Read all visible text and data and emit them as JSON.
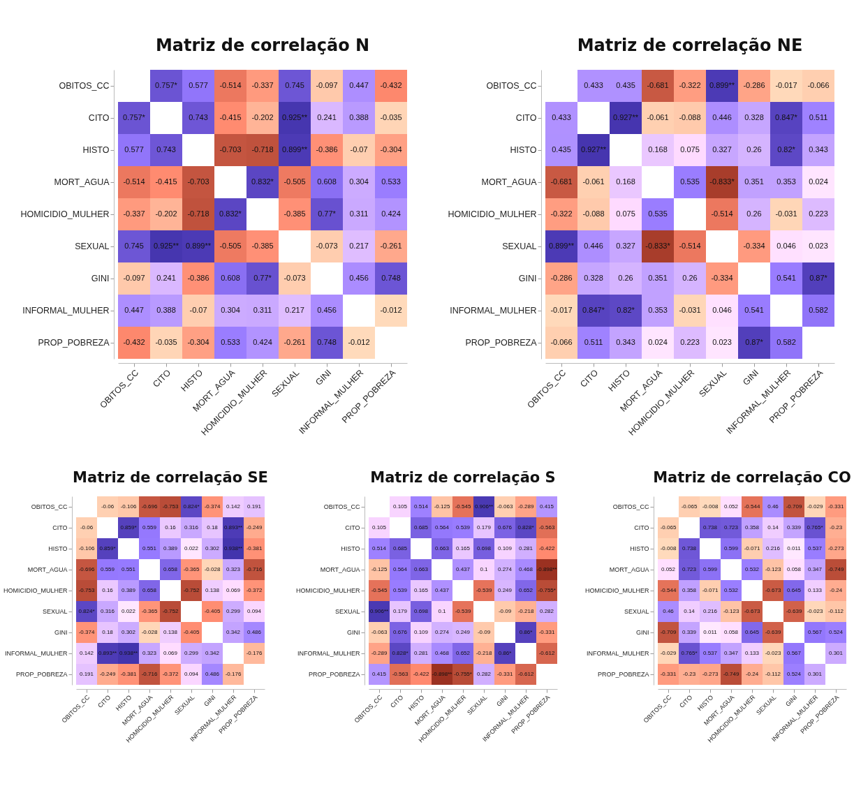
{
  "chart_data": [
    {
      "type": "heatmap",
      "data_labels": true,
      "title": "Matriz de correlação N",
      "categories": [
        "OBITOS_CC",
        "CITO",
        "HISTO",
        "MORT_AGUA",
        "HOMICIDIO_MULHER",
        "SEXUAL",
        "GINI",
        "INFORMAL_MULHER",
        "PROP_POBREZA"
      ],
      "y_categories": [
        "OBITOS_CC",
        "CITO",
        "HISTO",
        "MORT_AGUA",
        "HOMICIDIO_MULHER",
        "SEXUAL",
        "GINI",
        "INFORMAL_MULHER",
        "PROP_POBREZA"
      ],
      "cells": [
        [
          null,
          0.757,
          0.577,
          -0.514,
          -0.337,
          0.745,
          -0.097,
          0.447,
          -0.432
        ],
        [
          0.757,
          null,
          0.743,
          -0.415,
          -0.202,
          0.925,
          0.241,
          0.388,
          -0.035
        ],
        [
          0.577,
          0.743,
          null,
          -0.703,
          -0.718,
          0.899,
          -0.386,
          -0.07,
          -0.304
        ],
        [
          -0.514,
          -0.415,
          -0.703,
          null,
          0.832,
          -0.505,
          0.608,
          0.304,
          0.533
        ],
        [
          -0.337,
          -0.202,
          -0.718,
          0.832,
          null,
          -0.385,
          0.77,
          0.311,
          0.424
        ],
        [
          0.745,
          0.925,
          0.899,
          -0.505,
          -0.385,
          null,
          -0.073,
          0.217,
          -0.261
        ],
        [
          -0.097,
          0.241,
          -0.386,
          0.608,
          0.77,
          -0.073,
          null,
          0.456,
          0.748
        ],
        [
          0.447,
          0.388,
          -0.07,
          0.304,
          0.311,
          0.217,
          0.456,
          null,
          -0.012
        ],
        [
          -0.432,
          -0.035,
          -0.304,
          0.533,
          0.424,
          -0.261,
          0.748,
          -0.012,
          null
        ]
      ],
      "cell_labels": [
        [
          null,
          "0.757*",
          "0.577",
          "-0.514",
          "-0.337",
          "0.745",
          "-0.097",
          "0.447",
          "-0.432"
        ],
        [
          "0.757*",
          null,
          "0.743",
          "-0.415",
          "-0.202",
          "0.925**",
          "0.241",
          "0.388",
          "-0.035"
        ],
        [
          "0.577",
          "0.743",
          null,
          "-0.703",
          "-0.718",
          "0.899**",
          "-0.386",
          "-0.07",
          "-0.304"
        ],
        [
          "-0.514",
          "-0.415",
          "-0.703",
          null,
          "0.832*",
          "-0.505",
          "0.608",
          "0.304",
          "0.533"
        ],
        [
          "-0.337",
          "-0.202",
          "-0.718",
          "0.832*",
          null,
          "-0.385",
          "0.77*",
          "0.311",
          "0.424"
        ],
        [
          "0.745",
          "0.925**",
          "0.899**",
          "-0.505",
          "-0.385",
          null,
          "-0.073",
          "0.217",
          "-0.261"
        ],
        [
          "-0.097",
          "0.241",
          "-0.386",
          "0.608",
          "0.77*",
          "-0.073",
          null,
          "0.456",
          "0.748"
        ],
        [
          "0.447",
          "0.388",
          "-0.07",
          "0.304",
          "0.311",
          "0.217",
          "0.456",
          null,
          "-0.012"
        ],
        [
          "-0.432",
          "-0.035",
          "-0.304",
          "0.533",
          "0.424",
          "-0.261",
          "0.748",
          "-0.012",
          null
        ]
      ]
    },
    {
      "type": "heatmap",
      "data_labels": true,
      "title": "Matriz de correlação NE",
      "categories": [
        "OBITOS_CC",
        "CITO",
        "HISTO",
        "MORT_AGUA",
        "HOMICIDIO_MULHER",
        "SEXUAL",
        "GINI",
        "INFORMAL_MULHER",
        "PROP_POBREZA"
      ],
      "y_categories": [
        "OBITOS_CC",
        "CITO",
        "HISTO",
        "MORT_AGUA",
        "HOMICIDIO_MULHER",
        "SEXUAL",
        "GINI",
        "INFORMAL_MULHER",
        "PROP_POBREZA"
      ],
      "cells": [
        [
          null,
          0.433,
          0.435,
          -0.681,
          -0.322,
          0.899,
          -0.286,
          -0.017,
          -0.066
        ],
        [
          0.433,
          null,
          0.927,
          -0.061,
          -0.088,
          0.446,
          0.328,
          0.847,
          0.511
        ],
        [
          0.435,
          0.927,
          null,
          0.168,
          0.075,
          0.327,
          0.26,
          0.82,
          0.343
        ],
        [
          -0.681,
          -0.061,
          0.168,
          null,
          0.535,
          -0.833,
          0.351,
          0.353,
          0.024
        ],
        [
          -0.322,
          -0.088,
          0.075,
          0.535,
          null,
          -0.514,
          0.26,
          -0.031,
          0.223
        ],
        [
          0.899,
          0.446,
          0.327,
          -0.833,
          -0.514,
          null,
          -0.334,
          0.046,
          0.023
        ],
        [
          -0.286,
          0.328,
          0.26,
          0.351,
          0.26,
          -0.334,
          null,
          0.541,
          0.87
        ],
        [
          -0.017,
          0.847,
          0.82,
          0.353,
          -0.031,
          0.046,
          0.541,
          null,
          0.582
        ],
        [
          -0.066,
          0.511,
          0.343,
          0.024,
          0.223,
          0.023,
          0.87,
          0.582,
          null
        ]
      ],
      "cell_labels": [
        [
          null,
          "0.433",
          "0.435",
          "-0.681",
          "-0.322",
          "0.899**",
          "-0.286",
          "-0.017",
          "-0.066"
        ],
        [
          "0.433",
          null,
          "0.927**",
          "-0.061",
          "-0.088",
          "0.446",
          "0.328",
          "0.847*",
          "0.511"
        ],
        [
          "0.435",
          "0.927**",
          null,
          "0.168",
          "0.075",
          "0.327",
          "0.26",
          "0.82*",
          "0.343"
        ],
        [
          "-0.681",
          "-0.061",
          "0.168",
          null,
          "0.535",
          "-0.833*",
          "0.351",
          "0.353",
          "0.024"
        ],
        [
          "-0.322",
          "-0.088",
          "0.075",
          "0.535",
          null,
          "-0.514",
          "0.26",
          "-0.031",
          "0.223"
        ],
        [
          "0.899**",
          "0.446",
          "0.327",
          "-0.833*",
          "-0.514",
          null,
          "-0.334",
          "0.046",
          "0.023"
        ],
        [
          "-0.286",
          "0.328",
          "0.26",
          "0.351",
          "0.26",
          "-0.334",
          null,
          "0.541",
          "0.87*"
        ],
        [
          "-0.017",
          "0.847*",
          "0.82*",
          "0.353",
          "-0.031",
          "0.046",
          "0.541",
          null,
          "0.582"
        ],
        [
          "-0.066",
          "0.511",
          "0.343",
          "0.024",
          "0.223",
          "0.023",
          "0.87*",
          "0.582",
          null
        ]
      ]
    },
    {
      "type": "heatmap",
      "data_labels": true,
      "title": "Matriz de correlação SE",
      "categories": [
        "OBITOS_CC",
        "CITO",
        "HISTO",
        "MORT_AGUA",
        "HOMICIDIO_MULHER",
        "SEXUAL",
        "GINI",
        "INFORMAL_MULHER",
        "PROP_POBREZA"
      ],
      "y_categories": [
        "OBITOS_CC",
        "CITO",
        "HISTO",
        "MORT_AGUA",
        "HOMICIDIO_MULHER",
        "SEXUAL",
        "GINI",
        "INFORMAL_MULHER",
        "PROP_POBREZA"
      ],
      "cells": [
        [
          null,
          -0.06,
          -0.106,
          -0.696,
          -0.753,
          0.824,
          -0.374,
          0.142,
          0.191
        ],
        [
          -0.06,
          null,
          0.859,
          0.559,
          0.16,
          0.316,
          0.18,
          0.893,
          -0.249
        ],
        [
          -0.106,
          0.859,
          null,
          0.551,
          0.389,
          0.022,
          0.302,
          0.938,
          -0.381
        ],
        [
          -0.696,
          0.559,
          0.551,
          null,
          0.658,
          -0.365,
          -0.028,
          0.323,
          -0.716
        ],
        [
          -0.753,
          0.16,
          0.389,
          0.658,
          null,
          -0.752,
          0.138,
          0.069,
          -0.372
        ],
        [
          0.824,
          0.316,
          0.022,
          -0.365,
          -0.752,
          null,
          -0.405,
          0.299,
          0.094
        ],
        [
          -0.374,
          0.18,
          0.302,
          -0.028,
          0.138,
          -0.405,
          null,
          0.342,
          0.486
        ],
        [
          0.142,
          0.893,
          0.938,
          0.323,
          0.069,
          0.299,
          0.342,
          null,
          -0.176
        ],
        [
          0.191,
          -0.249,
          -0.381,
          -0.716,
          -0.372,
          0.094,
          0.486,
          -0.176,
          null
        ]
      ],
      "cell_labels": [
        [
          null,
          "-0.06",
          "-0.106",
          "-0.696",
          "-0.753",
          "0.824*",
          "-0.374",
          "0.142",
          "0.191"
        ],
        [
          "-0.06",
          null,
          "0.859*",
          "0.559",
          "0.16",
          "0.316",
          "0.18",
          "0.893**",
          "-0.249"
        ],
        [
          "-0.106",
          "0.859*",
          null,
          "0.551",
          "0.389",
          "0.022",
          "0.302",
          "0.938**",
          "-0.381"
        ],
        [
          "-0.696",
          "0.559",
          "0.551",
          null,
          "0.658",
          "-0.365",
          "-0.028",
          "0.323",
          "-0.716"
        ],
        [
          "-0.753",
          "0.16",
          "0.389",
          "0.658",
          null,
          "-0.752",
          "0.138",
          "0.069",
          "-0.372"
        ],
        [
          "0.824*",
          "0.316",
          "0.022",
          "-0.365",
          "-0.752",
          null,
          "-0.405",
          "0.299",
          "0.094"
        ],
        [
          "-0.374",
          "0.18",
          "0.302",
          "-0.028",
          "0.138",
          "-0.405",
          null,
          "0.342",
          "0.486"
        ],
        [
          "0.142",
          "0.893**",
          "0.938**",
          "0.323",
          "0.069",
          "0.299",
          "0.342",
          null,
          "-0.176"
        ],
        [
          "0.191",
          "-0.249",
          "-0.381",
          "-0.716",
          "-0.372",
          "0.094",
          "0.486",
          "-0.176",
          null
        ]
      ]
    },
    {
      "type": "heatmap",
      "data_labels": true,
      "title": "Matriz de correlação S",
      "categories": [
        "OBITOS_CC",
        "CITO",
        "HISTO",
        "MORT_AGUA",
        "HOMICIDIO_MULHER",
        "SEXUAL",
        "GINI",
        "INFORMAL_MULHER",
        "PROP_POBREZA"
      ],
      "y_categories": [
        "OBITOS_CC",
        "CITO",
        "HISTO",
        "MORT_AGUA",
        "HOMICIDIO_MULHER",
        "SEXUAL",
        "GINI",
        "INFORMAL_MULHER",
        "PROP_POBREZA"
      ],
      "cells": [
        [
          null,
          0.105,
          0.514,
          -0.125,
          -0.545,
          0.906,
          -0.063,
          -0.289,
          0.415
        ],
        [
          0.105,
          null,
          0.685,
          0.564,
          0.539,
          0.179,
          0.676,
          0.828,
          -0.563
        ],
        [
          0.514,
          0.685,
          null,
          0.663,
          0.165,
          0.698,
          0.109,
          0.281,
          -0.422
        ],
        [
          -0.125,
          0.564,
          0.663,
          null,
          0.437,
          0.1,
          0.274,
          0.468,
          -0.898
        ],
        [
          -0.545,
          0.539,
          0.165,
          0.437,
          null,
          -0.539,
          0.249,
          0.652,
          -0.755
        ],
        [
          0.906,
          0.179,
          0.698,
          0.1,
          -0.539,
          null,
          -0.09,
          -0.218,
          0.282
        ],
        [
          -0.063,
          0.676,
          0.109,
          0.274,
          0.249,
          -0.09,
          null,
          0.86,
          -0.331
        ],
        [
          -0.289,
          0.828,
          0.281,
          0.468,
          0.652,
          -0.218,
          0.86,
          null,
          -0.612
        ],
        [
          0.415,
          -0.563,
          -0.422,
          -0.898,
          -0.755,
          0.282,
          -0.331,
          -0.612,
          null
        ]
      ],
      "cell_labels": [
        [
          null,
          "0.105",
          "0.514",
          "-0.125",
          "-0.545",
          "0.906**",
          "-0.063",
          "-0.289",
          "0.415"
        ],
        [
          "0.105",
          null,
          "0.685",
          "0.564",
          "0.539",
          "0.179",
          "0.676",
          "0.828*",
          "-0.563"
        ],
        [
          "0.514",
          "0.685",
          null,
          "0.663",
          "0.165",
          "0.698",
          "0.109",
          "0.281",
          "-0.422"
        ],
        [
          "-0.125",
          "0.564",
          "0.663",
          null,
          "0.437",
          "0.1",
          "0.274",
          "0.468",
          "-0.898**"
        ],
        [
          "-0.545",
          "0.539",
          "0.165",
          "0.437",
          null,
          "-0.539",
          "0.249",
          "0.652",
          "-0.755*"
        ],
        [
          "0.906**",
          "0.179",
          "0.698",
          "0.1",
          "-0.539",
          null,
          "-0.09",
          "-0.218",
          "0.282"
        ],
        [
          "-0.063",
          "0.676",
          "0.109",
          "0.274",
          "0.249",
          "-0.09",
          null,
          "0.86*",
          "-0.331"
        ],
        [
          "-0.289",
          "0.828*",
          "0.281",
          "0.468",
          "0.652",
          "-0.218",
          "0.86*",
          null,
          "-0.612"
        ],
        [
          "0.415",
          "-0.563",
          "-0.422",
          "-0.898**",
          "-0.755*",
          "0.282",
          "-0.331",
          "-0.612",
          null
        ]
      ]
    },
    {
      "type": "heatmap",
      "data_labels": true,
      "title": "Matriz de correlação CO",
      "categories": [
        "OBITOS_CC",
        "CITO",
        "HISTO",
        "MORT_AGUA",
        "HOMICIDIO_MULHER",
        "SEXUAL",
        "GINI",
        "INFORMAL_MULHER",
        "PROP_POBREZA"
      ],
      "y_categories": [
        "OBITOS_CC",
        "CITO",
        "HISTO",
        "MORT_AGUA",
        "HOMICIDIO_MULHER",
        "SEXUAL",
        "GINI",
        "INFORMAL_MULHER",
        "PROP_POBREZA"
      ],
      "cells": [
        [
          null,
          -0.065,
          -0.008,
          0.052,
          -0.544,
          0.46,
          -0.709,
          -0.029,
          -0.331
        ],
        [
          -0.065,
          null,
          0.738,
          0.723,
          0.358,
          0.14,
          0.339,
          0.765,
          -0.23
        ],
        [
          -0.008,
          0.738,
          null,
          0.599,
          -0.071,
          0.216,
          0.011,
          0.537,
          -0.273
        ],
        [
          0.052,
          0.723,
          0.599,
          null,
          0.532,
          -0.123,
          0.058,
          0.347,
          -0.749
        ],
        [
          -0.544,
          0.358,
          -0.071,
          0.532,
          null,
          -0.673,
          0.645,
          0.133,
          -0.24
        ],
        [
          0.46,
          0.14,
          0.216,
          -0.123,
          -0.673,
          null,
          -0.639,
          -0.023,
          -0.112
        ],
        [
          -0.709,
          0.339,
          0.011,
          0.058,
          0.645,
          -0.639,
          null,
          0.567,
          0.524
        ],
        [
          -0.029,
          0.765,
          0.537,
          0.347,
          0.133,
          -0.023,
          0.567,
          null,
          0.301
        ],
        [
          -0.331,
          -0.23,
          -0.273,
          -0.749,
          -0.24,
          -0.112,
          0.524,
          0.301,
          null
        ]
      ],
      "cell_labels": [
        [
          null,
          "-0.065",
          "-0.008",
          "0.052",
          "-0.544",
          "0.46",
          "-0.709",
          "-0.029",
          "-0.331"
        ],
        [
          "-0.065",
          null,
          "0.738",
          "0.723",
          "0.358",
          "0.14",
          "0.339",
          "0.765*",
          "-0.23"
        ],
        [
          "-0.008",
          "0.738",
          null,
          "0.599",
          "-0.071",
          "0.216",
          "0.011",
          "0.537",
          "-0.273"
        ],
        [
          "0.052",
          "0.723",
          "0.599",
          null,
          "0.532",
          "-0.123",
          "0.058",
          "0.347",
          "-0.749"
        ],
        [
          "-0.544",
          "0.358",
          "-0.071",
          "0.532",
          null,
          "-0.673",
          "0.645",
          "0.133",
          "-0.24"
        ],
        [
          "0.46",
          "0.14",
          "0.216",
          "-0.123",
          "-0.673",
          null,
          "-0.639",
          "-0.023",
          "-0.112"
        ],
        [
          "-0.709",
          "0.339",
          "0.011",
          "0.058",
          "0.645",
          "-0.639",
          null,
          "0.567",
          "0.524"
        ],
        [
          "-0.029",
          "0.765*",
          "0.537",
          "0.347",
          "0.133",
          "-0.023",
          "0.567",
          null,
          "0.301"
        ],
        [
          "-0.331",
          "-0.23",
          "-0.273",
          "-0.749",
          "-0.24",
          "-0.112",
          "0.524",
          "0.301",
          null
        ]
      ]
    }
  ]
}
